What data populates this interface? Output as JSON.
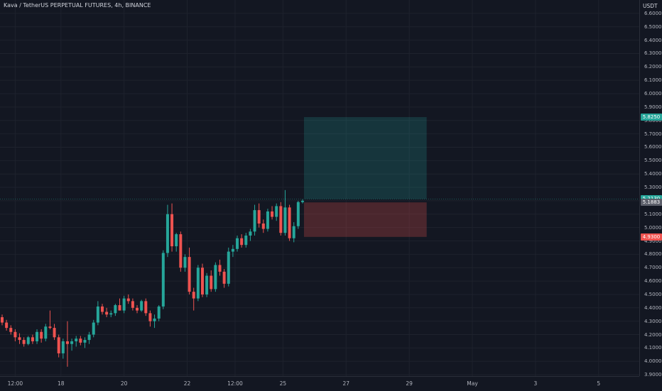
{
  "header": {
    "title": "Kava / TetherUS PERPETUAL FUTURES, 4h, BINANCE"
  },
  "price_axis": {
    "currency": "USDT"
  },
  "colors": {
    "up": "#26a69a",
    "down": "#ef5350",
    "grid": "#1e222d",
    "background": "#131722"
  },
  "chart_data": {
    "type": "candlestick",
    "title": "Kava / TetherUS PERPETUAL FUTURES, 4h, BINANCE",
    "y_axis": {
      "label": "USDT",
      "range": [
        3.89,
        6.7
      ],
      "ticks": [
        "3.9000",
        "4.0000",
        "4.1000",
        "4.2000",
        "4.3000",
        "4.4000",
        "4.5000",
        "4.6000",
        "4.7000",
        "4.8000",
        "4.9000",
        "5.0000",
        "5.1000",
        "5.2000",
        "5.3000",
        "5.4000",
        "5.5000",
        "5.6000",
        "5.7000",
        "5.8000",
        "5.9000",
        "6.0000",
        "6.1000",
        "6.2000",
        "6.3000",
        "6.4000",
        "6.5000",
        "6.6000"
      ]
    },
    "x_axis": {
      "range_candles": [
        0,
        152
      ],
      "ticks": [
        {
          "label": "12:00",
          "i": 3
        },
        {
          "label": "18",
          "i": 13.5
        },
        {
          "label": "20",
          "i": 28
        },
        {
          "label": "22",
          "i": 42.5
        },
        {
          "label": "12:00",
          "i": 53.5
        },
        {
          "label": "25",
          "i": 64.5
        },
        {
          "label": "27",
          "i": 79
        },
        {
          "label": "29",
          "i": 93.5
        },
        {
          "label": "May",
          "i": 108
        },
        {
          "label": "3",
          "i": 122.5
        },
        {
          "label": "5",
          "i": 137
        }
      ]
    },
    "candles": [
      [
        4.33,
        4.35,
        4.27,
        4.29
      ],
      [
        4.29,
        4.31,
        4.23,
        4.25
      ],
      [
        4.25,
        4.27,
        4.2,
        4.22
      ],
      [
        4.22,
        4.24,
        4.15,
        4.18
      ],
      [
        4.18,
        4.21,
        4.13,
        4.16
      ],
      [
        4.16,
        4.18,
        4.11,
        4.13
      ],
      [
        4.13,
        4.19,
        4.12,
        4.18
      ],
      [
        4.18,
        4.2,
        4.13,
        4.15
      ],
      [
        4.15,
        4.24,
        4.13,
        4.22
      ],
      [
        4.22,
        4.24,
        4.14,
        4.17
      ],
      [
        4.17,
        4.28,
        4.15,
        4.26
      ],
      [
        4.26,
        4.38,
        4.24,
        4.25
      ],
      [
        4.25,
        4.28,
        4.16,
        4.18
      ],
      [
        4.18,
        4.2,
        4.03,
        4.06
      ],
      [
        4.06,
        4.17,
        4.02,
        4.15
      ],
      [
        4.15,
        4.3,
        3.96,
        4.13
      ],
      [
        4.13,
        4.17,
        4.08,
        4.15
      ],
      [
        4.15,
        4.19,
        4.11,
        4.17
      ],
      [
        4.17,
        4.19,
        4.12,
        4.14
      ],
      [
        4.14,
        4.18,
        4.1,
        4.16
      ],
      [
        4.16,
        4.22,
        4.13,
        4.2
      ],
      [
        4.2,
        4.31,
        4.18,
        4.29
      ],
      [
        4.29,
        4.45,
        4.27,
        4.41
      ],
      [
        4.41,
        4.43,
        4.35,
        4.37
      ],
      [
        4.37,
        4.4,
        4.33,
        4.35
      ],
      [
        4.35,
        4.38,
        4.33,
        4.36
      ],
      [
        4.36,
        4.43,
        4.34,
        4.42
      ],
      [
        4.42,
        4.47,
        4.38,
        4.38
      ],
      [
        4.38,
        4.49,
        4.36,
        4.47
      ],
      [
        4.47,
        4.5,
        4.43,
        4.45
      ],
      [
        4.45,
        4.47,
        4.38,
        4.4
      ],
      [
        4.4,
        4.42,
        4.36,
        4.38
      ],
      [
        4.38,
        4.46,
        4.37,
        4.45
      ],
      [
        4.45,
        4.47,
        4.34,
        4.36
      ],
      [
        4.36,
        4.38,
        4.26,
        4.3
      ],
      [
        4.3,
        4.35,
        4.25,
        4.32
      ],
      [
        4.32,
        4.42,
        4.3,
        4.41
      ],
      [
        4.41,
        4.83,
        4.39,
        4.81
      ],
      [
        4.81,
        5.17,
        4.78,
        5.1
      ],
      [
        5.1,
        5.18,
        4.82,
        4.86
      ],
      [
        4.86,
        4.96,
        4.82,
        4.95
      ],
      [
        4.95,
        4.97,
        4.67,
        4.7
      ],
      [
        4.7,
        4.8,
        4.67,
        4.78
      ],
      [
        4.78,
        4.85,
        4.5,
        4.52
      ],
      [
        4.52,
        4.55,
        4.38,
        4.47
      ],
      [
        4.47,
        4.72,
        4.45,
        4.7
      ],
      [
        4.7,
        4.73,
        4.48,
        4.5
      ],
      [
        4.5,
        4.66,
        4.48,
        4.64
      ],
      [
        4.64,
        4.68,
        4.52,
        4.54
      ],
      [
        4.54,
        4.74,
        4.52,
        4.72
      ],
      [
        4.72,
        4.76,
        4.64,
        4.67
      ],
      [
        4.67,
        4.69,
        4.55,
        4.58
      ],
      [
        4.58,
        4.85,
        4.56,
        4.82
      ],
      [
        4.82,
        4.87,
        4.78,
        4.84
      ],
      [
        4.84,
        4.94,
        4.82,
        4.92
      ],
      [
        4.92,
        4.95,
        4.85,
        4.87
      ],
      [
        4.87,
        4.96,
        4.85,
        4.94
      ],
      [
        4.94,
        4.99,
        4.9,
        4.97
      ],
      [
        4.97,
        5.17,
        4.94,
        5.13
      ],
      [
        5.13,
        5.18,
        5.0,
        5.03
      ],
      [
        5.03,
        5.06,
        4.96,
        4.99
      ],
      [
        4.99,
        5.14,
        4.97,
        5.12
      ],
      [
        5.12,
        5.16,
        5.06,
        5.08
      ],
      [
        5.08,
        5.18,
        5.05,
        5.16
      ],
      [
        5.16,
        5.19,
        4.94,
        4.96
      ],
      [
        4.96,
        5.28,
        4.94,
        5.15
      ],
      [
        5.15,
        5.17,
        4.9,
        4.92
      ],
      [
        4.92,
        5.04,
        4.89,
        5.01
      ],
      [
        5.01,
        5.2,
        4.99,
        5.19
      ],
      [
        5.19,
        5.21,
        5.18,
        5.2
      ]
    ],
    "overlays": {
      "profit_zone": {
        "from_price": 5.213,
        "to_price": 5.825
      },
      "loss_zone": {
        "from_price": 4.93,
        "to_price": 5.188
      }
    },
    "price_labels": [
      {
        "text": "5.8250",
        "price": 5.825,
        "color": "#26a69a"
      },
      {
        "text": "5.2130",
        "price": 5.213,
        "color": "#26a69a"
      },
      {
        "text": "5.1883",
        "price": 5.188,
        "color": "#5d606b"
      },
      {
        "text": "4.9300",
        "price": 4.93,
        "color": "#ef5350"
      }
    ]
  }
}
